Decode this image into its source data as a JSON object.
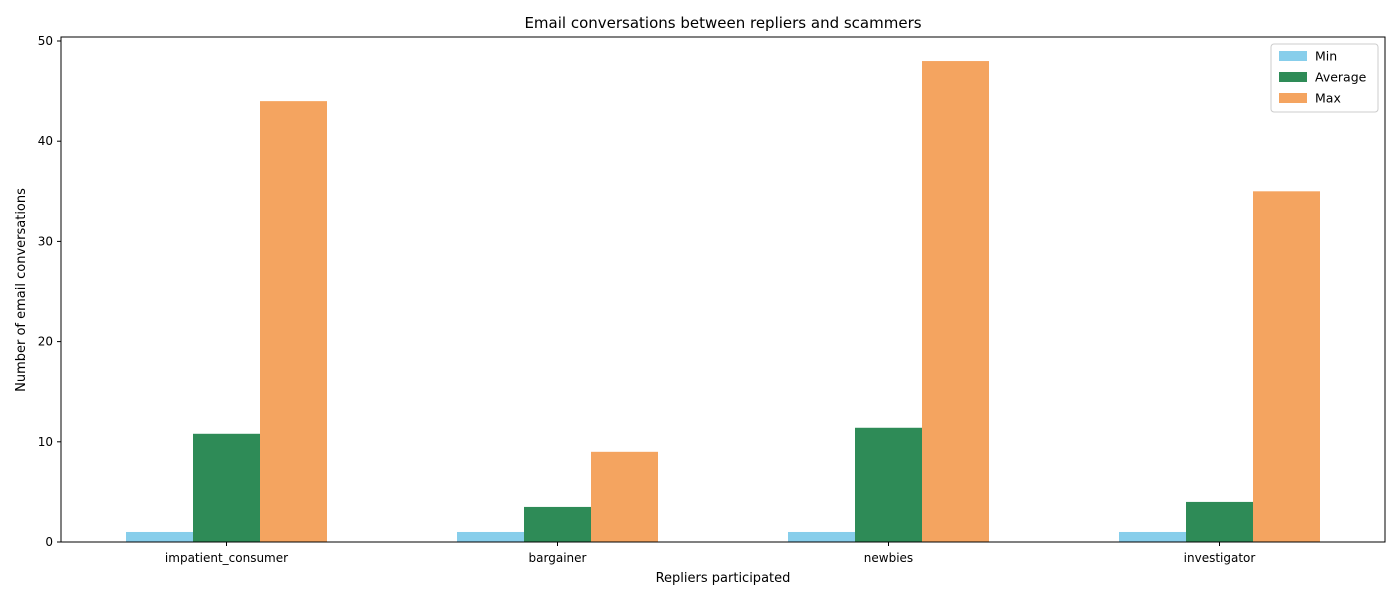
{
  "chart_data": {
    "type": "bar",
    "title": "Email conversations between repliers and scammers",
    "xlabel": "Repliers participated",
    "ylabel": "Number of email conversations",
    "categories": [
      "impatient_consumer",
      "bargainer",
      "newbies",
      "investigator"
    ],
    "series": [
      {
        "name": "Min",
        "color": "#87ceeb",
        "values": [
          1,
          1,
          1,
          1
        ]
      },
      {
        "name": "Average",
        "color": "#2e8b57",
        "values": [
          10.8,
          3.5,
          11.4,
          4.0
        ]
      },
      {
        "name": "Max",
        "color": "#f4a460",
        "values": [
          44,
          9,
          48,
          35
        ]
      }
    ],
    "ylim": [
      0,
      50.4
    ],
    "yticks": [
      0,
      10,
      20,
      30,
      40,
      50
    ],
    "grid": false,
    "legend_position": "top-right"
  }
}
